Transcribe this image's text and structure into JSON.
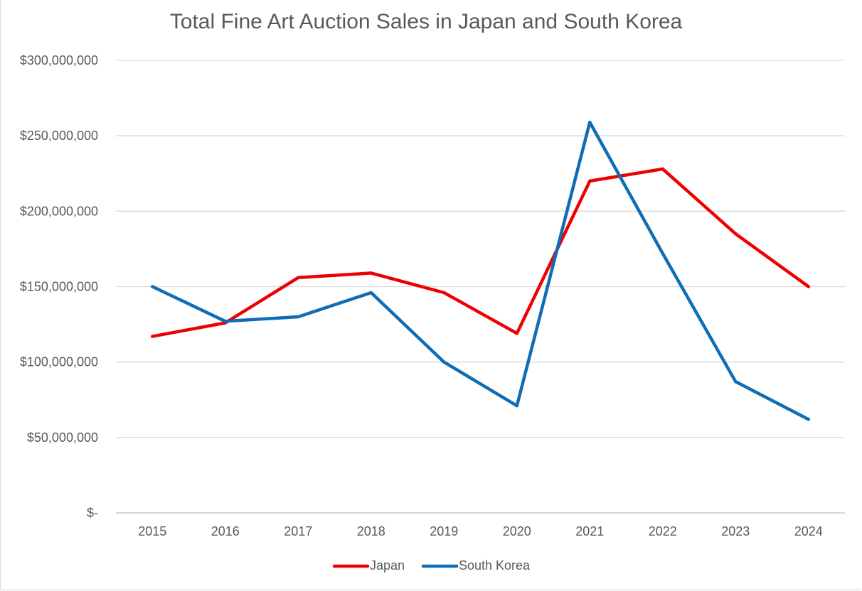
{
  "chart_data": {
    "type": "line",
    "title": "Total Fine Art Auction Sales in Japan and South Korea",
    "xlabel": "",
    "ylabel": "",
    "categories": [
      "2015",
      "2016",
      "2017",
      "2018",
      "2019",
      "2020",
      "2021",
      "2022",
      "2023",
      "2024"
    ],
    "ylim": [
      0,
      300000000
    ],
    "yticks": [
      0,
      50000000,
      100000000,
      150000000,
      200000000,
      250000000,
      300000000
    ],
    "ytick_labels": [
      "$-",
      "$50,000,000",
      "$100,000,000",
      "$150,000,000",
      "$200,000,000",
      "$250,000,000",
      "$300,000,000"
    ],
    "grid": true,
    "legend": "bottom",
    "series": [
      {
        "name": "Japan",
        "color": "#ee0000",
        "values": [
          117000000,
          126000000,
          156000000,
          159000000,
          146000000,
          119000000,
          220000000,
          228000000,
          185000000,
          150000000
        ]
      },
      {
        "name": "South Korea",
        "color": "#0f6db6",
        "values": [
          150000000,
          127000000,
          130000000,
          146000000,
          100000000,
          71000000,
          259000000,
          172000000,
          87000000,
          62000000
        ]
      }
    ]
  }
}
